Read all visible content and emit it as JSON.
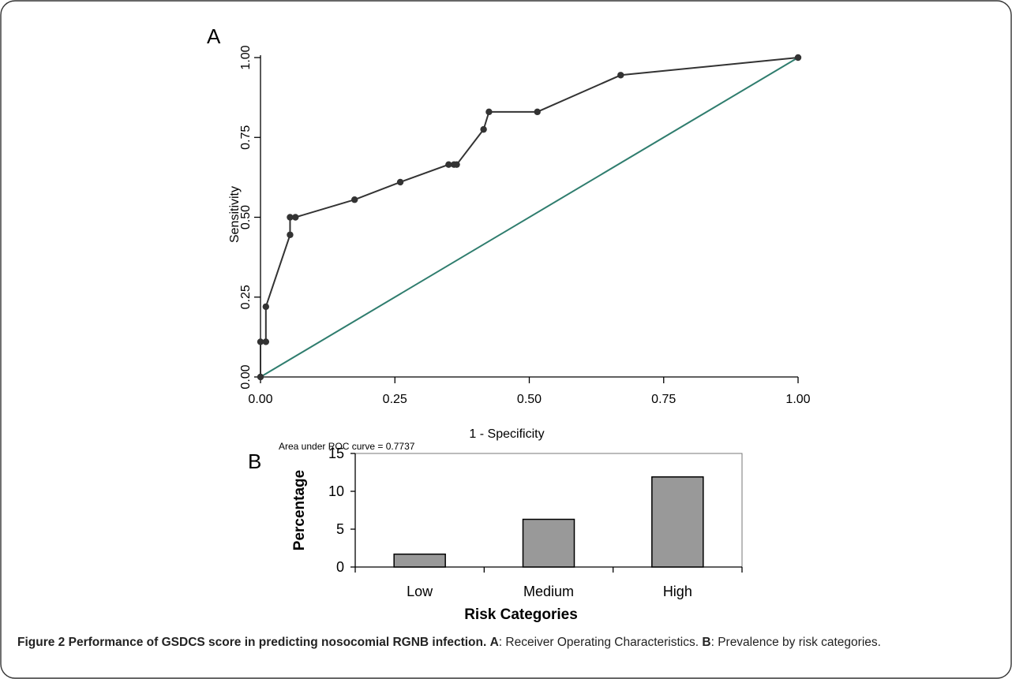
{
  "colors": {
    "roc_curve": "#333333",
    "reference_line": "#2f7d6e",
    "bar_fill": "#999999",
    "bar_edge": "#000000"
  },
  "panel_a": {
    "letter": "A",
    "note": "Area under ROC curve = 0.7737"
  },
  "panel_b": {
    "letter": "B"
  },
  "chart_data": [
    {
      "type": "line",
      "panel": "A",
      "xlabel": "1 - Specificity",
      "ylabel": "Sensitivity",
      "xlim": [
        0,
        1
      ],
      "ylim": [
        0,
        1
      ],
      "x_ticks": [
        "0.00",
        "0.25",
        "0.50",
        "0.75",
        "1.00"
      ],
      "y_ticks": [
        "0.00",
        "0.25",
        "0.50",
        "0.75",
        "1.00"
      ],
      "grid": false,
      "series": [
        {
          "x": [
            0.0,
            0.0,
            0.01,
            0.01,
            0.055,
            0.055,
            0.065,
            0.175,
            0.26,
            0.35,
            0.36,
            0.365,
            0.415,
            0.425,
            0.515,
            0.67,
            1.0
          ],
          "y": [
            0.0,
            0.11,
            0.11,
            0.22,
            0.445,
            0.5,
            0.5,
            0.555,
            0.61,
            0.665,
            0.665,
            0.665,
            0.775,
            0.83,
            0.83,
            0.945,
            1.0
          ],
          "markers": true
        },
        {
          "x": [
            0.0,
            1.0
          ],
          "y": [
            0.0,
            1.0
          ],
          "markers": false
        }
      ],
      "annotation": "Area under ROC curve = 0.7737"
    },
    {
      "type": "bar",
      "panel": "B",
      "categories": [
        "Low",
        "Medium",
        "High"
      ],
      "values": [
        1.7,
        6.3,
        11.9
      ],
      "xlabel": "Risk Categories",
      "ylabel": "Percentage",
      "ylim": [
        0,
        15
      ],
      "y_ticks": [
        "0",
        "5",
        "10",
        "15"
      ],
      "grid": false
    }
  ],
  "caption": {
    "label": "Figure 2",
    "title": "Performance of GSDCS score in predicting nosocomial RGNB infection.",
    "a_key": "A",
    "a_text": ": Receiver Operating Characteristics.",
    "b_key": "B",
    "b_text": ": Prevalence by risk categories."
  }
}
